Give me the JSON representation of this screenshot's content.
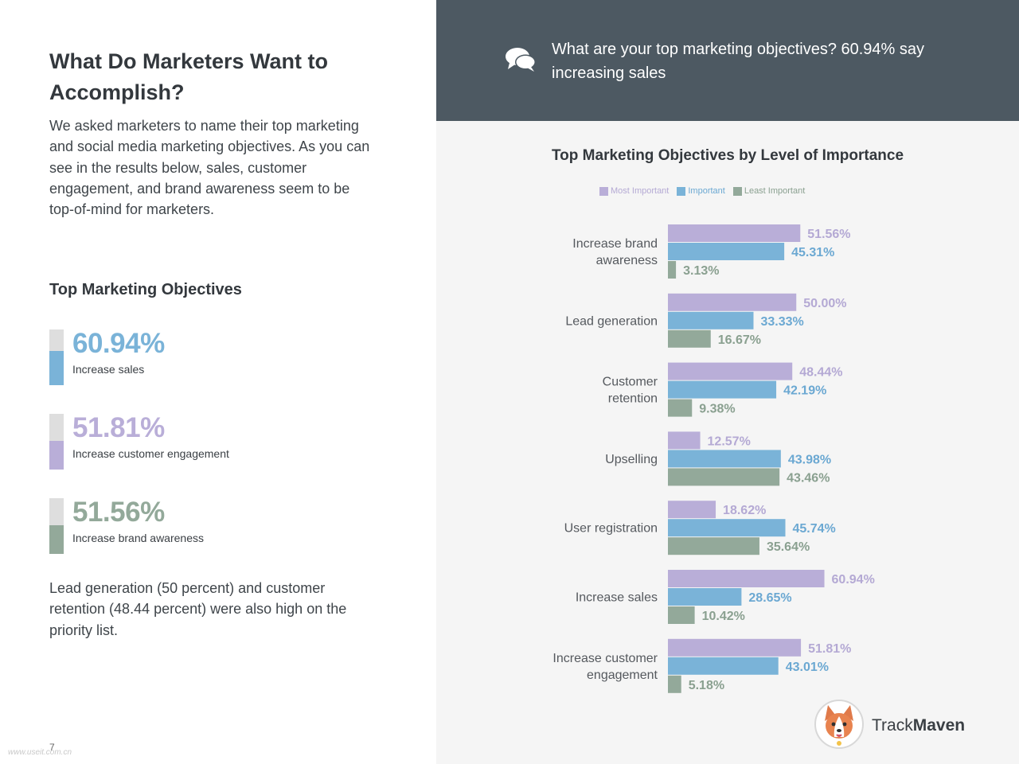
{
  "left": {
    "title": "What Do Marketers Want to Accomplish?",
    "intro": "We asked marketers to name their top marketing and social media marketing objectives. As you can see in the results below, sales, customer engagement, and brand awareness seem to be top-of-mind for marketers.",
    "section_title": "Top Marketing Objectives",
    "stats": [
      {
        "value": "60.94%",
        "label": "Increase sales",
        "fraction": 0.6094,
        "color": "#7ab3d8"
      },
      {
        "value": "51.81%",
        "label": "Increase customer engagement",
        "fraction": 0.5181,
        "color": "#b9aed8"
      },
      {
        "value": "51.56%",
        "label": "Increase brand awareness",
        "fraction": 0.5156,
        "color": "#93a99a"
      }
    ],
    "outro": "Lead generation (50 percent) and customer retention (48.44 percent) were also high on the priority list.",
    "page_number": "7",
    "watermark": "www.useit.com.cn"
  },
  "banner": {
    "icon": "chat-bubbles-icon",
    "quote": "What are your top marketing objectives? 60.94% say increasing sales"
  },
  "colors": {
    "most_important": "#b9aed8",
    "important": "#7ab3d8",
    "least_important": "#93a99a"
  },
  "chart_data": {
    "type": "bar",
    "orientation": "horizontal",
    "title": "Top Marketing Objectives by Level of Importance",
    "legend_position": "top",
    "xlim": [
      0,
      100
    ],
    "grid": false,
    "categories": [
      "Increase brand awareness",
      "Lead generation",
      "Customer retention",
      "Upselling",
      "User registration",
      "Increase sales",
      "Increase customer engagement"
    ],
    "series": [
      {
        "name": "Most Important",
        "values": [
          51.56,
          50.0,
          48.44,
          12.57,
          18.62,
          60.94,
          51.81
        ],
        "labels": [
          "51.56%",
          "50.00%",
          "48.44%",
          "12.57%",
          "18.62%",
          "60.94%",
          "51.81%"
        ],
        "color": "#b9aed8",
        "label_color": "#b4a9d4"
      },
      {
        "name": "Important",
        "values": [
          45.31,
          33.33,
          42.19,
          43.98,
          45.74,
          28.65,
          43.01
        ],
        "labels": [
          "45.31%",
          "33.33%",
          "42.19%",
          "43.98%",
          "45.74%",
          "28.65%",
          "43.01%"
        ],
        "color": "#7ab3d8",
        "label_color": "#6ba8d2"
      },
      {
        "name": "Least Important",
        "values": [
          3.13,
          16.67,
          9.38,
          43.46,
          35.64,
          10.42,
          5.18
        ],
        "labels": [
          "3.13%",
          "16.67%",
          "9.38%",
          "43.46%",
          "35.64%",
          "10.42%",
          "5.18%"
        ],
        "color": "#93a99a",
        "label_color": "#8aa090"
      }
    ]
  },
  "logo": {
    "icon": "corgi-mascot-icon",
    "text_regular": "Track",
    "text_bold": "Maven"
  }
}
